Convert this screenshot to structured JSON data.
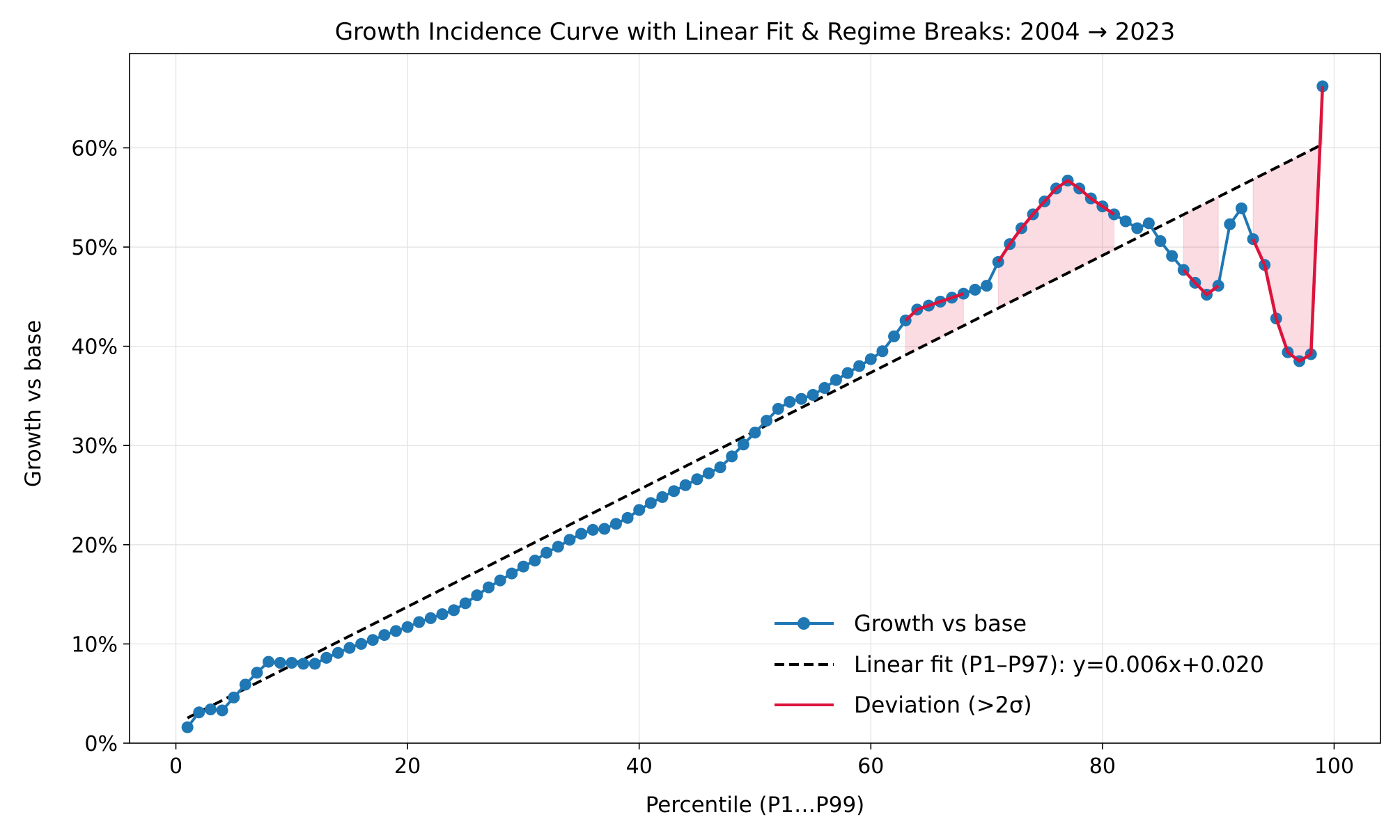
{
  "chart_data": {
    "type": "line",
    "title": "Growth Incidence Curve with Linear Fit & Regime Breaks: 2004 → 2023",
    "xlabel": "Percentile (P1…P99)",
    "ylabel": "Growth vs base",
    "xlim": [
      -4,
      104
    ],
    "ylim": [
      0,
      0.695
    ],
    "x_ticks": [
      0,
      20,
      40,
      60,
      80,
      100
    ],
    "x_tick_labels": [
      "0",
      "20",
      "40",
      "60",
      "80",
      "100"
    ],
    "y_ticks": [
      0,
      0.1,
      0.2,
      0.3,
      0.4,
      0.5,
      0.6
    ],
    "y_tick_labels": [
      "0%",
      "10%",
      "20%",
      "30%",
      "40%",
      "50%",
      "60%"
    ],
    "grid": true,
    "legend_position": "lower-right",
    "colors": {
      "growth": "#1f77b4",
      "fit": "#000000",
      "deviation": "#dc143c",
      "shade": "#dc143c"
    },
    "series": [
      {
        "name": "Growth vs base",
        "style": "line-with-markers",
        "x": [
          1,
          2,
          3,
          4,
          5,
          6,
          7,
          8,
          9,
          10,
          11,
          12,
          13,
          14,
          15,
          16,
          17,
          18,
          19,
          20,
          21,
          22,
          23,
          24,
          25,
          26,
          27,
          28,
          29,
          30,
          31,
          32,
          33,
          34,
          35,
          36,
          37,
          38,
          39,
          40,
          41,
          42,
          43,
          44,
          45,
          46,
          47,
          48,
          49,
          50,
          51,
          52,
          53,
          54,
          55,
          56,
          57,
          58,
          59,
          60,
          61,
          62,
          63,
          64,
          65,
          66,
          67,
          68,
          69,
          70,
          71,
          72,
          73,
          74,
          75,
          76,
          77,
          78,
          79,
          80,
          81,
          82,
          83,
          84,
          85,
          86,
          87,
          88,
          89,
          90,
          91,
          92,
          93,
          94,
          95,
          96,
          97,
          98,
          99
        ],
        "values": [
          0.016,
          0.031,
          0.034,
          0.033,
          0.046,
          0.059,
          0.071,
          0.082,
          0.081,
          0.081,
          0.08,
          0.08,
          0.086,
          0.091,
          0.096,
          0.1,
          0.104,
          0.109,
          0.113,
          0.117,
          0.122,
          0.126,
          0.13,
          0.134,
          0.141,
          0.149,
          0.157,
          0.164,
          0.171,
          0.178,
          0.184,
          0.192,
          0.198,
          0.205,
          0.211,
          0.215,
          0.216,
          0.221,
          0.227,
          0.235,
          0.242,
          0.248,
          0.254,
          0.26,
          0.266,
          0.272,
          0.278,
          0.289,
          0.301,
          0.313,
          0.325,
          0.337,
          0.344,
          0.347,
          0.351,
          0.358,
          0.366,
          0.373,
          0.38,
          0.387,
          0.395,
          0.41,
          0.426,
          0.437,
          0.441,
          0.445,
          0.449,
          0.453,
          0.457,
          0.461,
          0.485,
          0.503,
          0.519,
          0.533,
          0.546,
          0.559,
          0.567,
          0.559,
          0.549,
          0.541,
          0.533,
          0.526,
          0.519,
          0.524,
          0.506,
          0.491,
          0.477,
          0.464,
          0.452,
          0.461,
          0.523,
          0.539,
          0.508,
          0.482,
          0.428,
          0.394,
          0.385,
          0.392,
          0.662
        ]
      },
      {
        "name": "Linear fit (P1–P97): y=0.006x+0.020",
        "style": "dashed",
        "slope": 0.0059,
        "intercept": 0.0195,
        "x_range": [
          1,
          99
        ]
      },
      {
        "name": "Deviation (>2σ)",
        "style": "line",
        "segments": [
          [
            63,
            68
          ],
          [
            71,
            81
          ],
          [
            87,
            90
          ],
          [
            93,
            99
          ]
        ]
      }
    ]
  }
}
